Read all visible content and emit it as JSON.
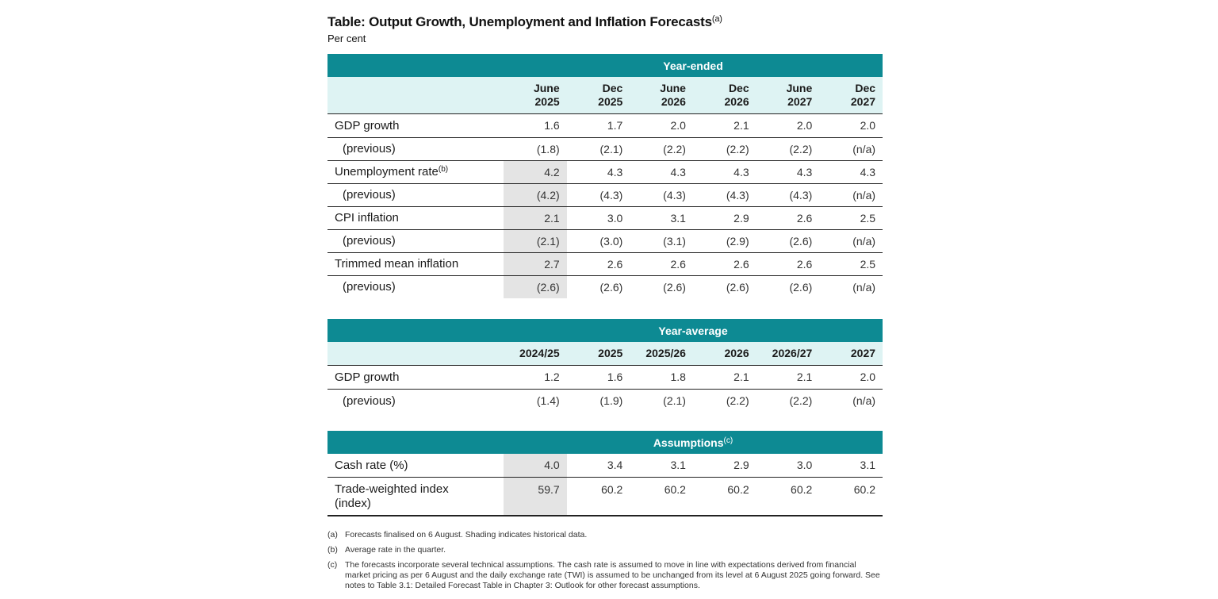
{
  "title": "Table: Output Growth, Unemployment and Inflation Forecasts",
  "title_note": "(a)",
  "subtitle": "Per cent",
  "year_ended": {
    "band_label": "Year-ended",
    "columns": [
      {
        "line1": "June",
        "line2": "2025"
      },
      {
        "line1": "Dec",
        "line2": "2025"
      },
      {
        "line1": "June",
        "line2": "2026"
      },
      {
        "line1": "Dec",
        "line2": "2026"
      },
      {
        "line1": "June",
        "line2": "2027"
      },
      {
        "line1": "Dec",
        "line2": "2027"
      }
    ],
    "rows": [
      {
        "label": "GDP growth",
        "values": [
          "1.6",
          "1.7",
          "2.0",
          "2.1",
          "2.0",
          "2.0"
        ]
      },
      {
        "label": "(previous)",
        "values": [
          "(1.8)",
          "(2.1)",
          "(2.2)",
          "(2.2)",
          "(2.2)",
          "(n/a)"
        ]
      },
      {
        "label": "Unemployment rate",
        "note": "(b)",
        "values": [
          "4.2",
          "4.3",
          "4.3",
          "4.3",
          "4.3",
          "4.3"
        ]
      },
      {
        "label": "(previous)",
        "values": [
          "(4.2)",
          "(4.3)",
          "(4.3)",
          "(4.3)",
          "(4.3)",
          "(n/a)"
        ]
      },
      {
        "label": "CPI inflation",
        "values": [
          "2.1",
          "3.0",
          "3.1",
          "2.9",
          "2.6",
          "2.5"
        ]
      },
      {
        "label": "(previous)",
        "values": [
          "(2.1)",
          "(3.0)",
          "(3.1)",
          "(2.9)",
          "(2.6)",
          "(n/a)"
        ]
      },
      {
        "label": "Trimmed mean inflation",
        "values": [
          "2.7",
          "2.6",
          "2.6",
          "2.6",
          "2.6",
          "2.5"
        ]
      },
      {
        "label": "(previous)",
        "values": [
          "(2.6)",
          "(2.6)",
          "(2.6)",
          "(2.6)",
          "(2.6)",
          "(n/a)"
        ]
      }
    ]
  },
  "year_average": {
    "band_label": "Year-average",
    "columns": [
      "2024/25",
      "2025",
      "2025/26",
      "2026",
      "2026/27",
      "2027"
    ],
    "rows": [
      {
        "label": "GDP growth",
        "values": [
          "1.2",
          "1.6",
          "1.8",
          "2.1",
          "2.1",
          "2.0"
        ]
      },
      {
        "label": "(previous)",
        "values": [
          "(1.4)",
          "(1.9)",
          "(2.1)",
          "(2.2)",
          "(2.2)",
          "(n/a)"
        ]
      }
    ]
  },
  "assumptions": {
    "band_label": "Assumptions",
    "band_note": "(c)",
    "rows": [
      {
        "label": "Cash rate (%)",
        "values": [
          "4.0",
          "3.4",
          "3.1",
          "2.9",
          "3.0",
          "3.1"
        ]
      },
      {
        "label_line1": "Trade-weighted index",
        "label_line2": "(index)",
        "values": [
          "59.7",
          "60.2",
          "60.2",
          "60.2",
          "60.2",
          "60.2"
        ]
      }
    ]
  },
  "notes": [
    {
      "marker": "(a)",
      "text": "Forecasts finalised on 6 August. Shading indicates historical data."
    },
    {
      "marker": "(b)",
      "text": "Average rate in the quarter."
    },
    {
      "marker": "(c)",
      "text": "The forecasts incorporate several technical assumptions. The cash rate is assumed to move in line with expectations derived from financial market pricing as per 6 August and the daily exchange rate (TWI) is assumed to be unchanged from its level at 6 August 2025 going forward. See notes to Table 3.1: Detailed Forecast Table in Chapter 3: Outlook for other forecast assumptions."
    }
  ]
}
